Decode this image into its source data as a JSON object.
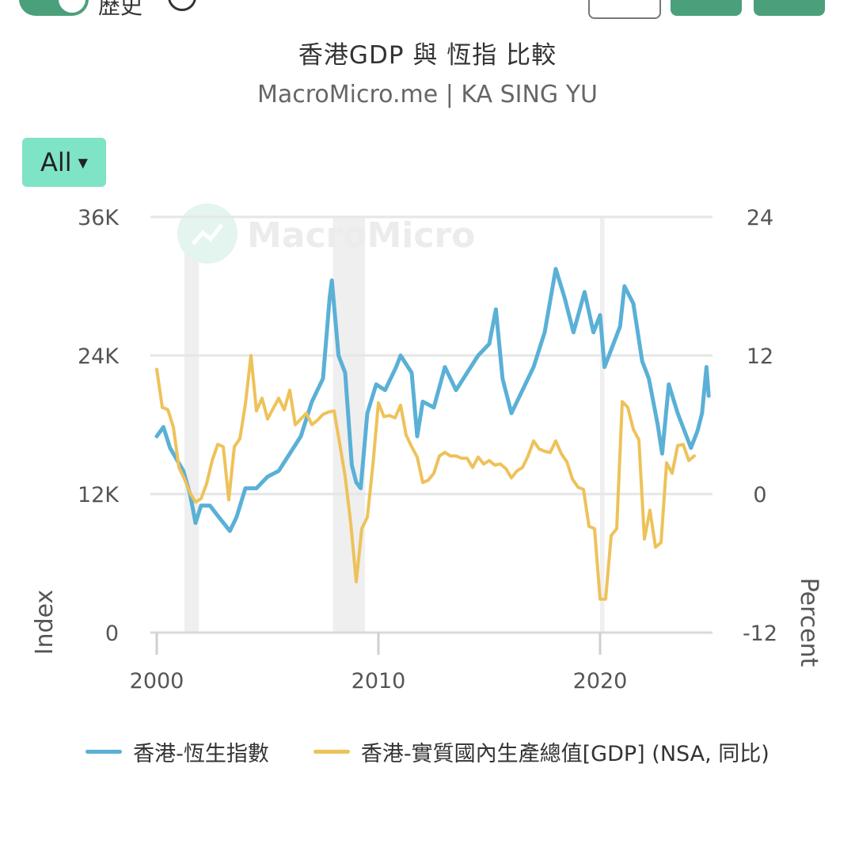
{
  "header": {
    "toggle_label": "歷史",
    "title": "香港GDP 與 恆指 比較",
    "subtitle": "MacroMicro.me | KA SING YU",
    "range_button": "All"
  },
  "watermark": "MacroMicro",
  "colors": {
    "hsi": "#5ab0d6",
    "gdp": "#eec25a",
    "accent": "#4aa07a",
    "range_button": "#7fe3c6",
    "recession_band": "#efefef",
    "grid": "#e6e6e6"
  },
  "chart_data": {
    "type": "line",
    "title": "香港GDP 與 恆指 比較",
    "subtitle": "MacroMicro.me | KA SING YU",
    "x_ticks": [
      "2000",
      "2010",
      "2020"
    ],
    "y_left": {
      "label": "Index",
      "ticks": [
        "0",
        "12K",
        "24K",
        "36K"
      ],
      "range": [
        0,
        36000
      ]
    },
    "y_right": {
      "label": "Percent",
      "ticks": [
        "-12",
        "0",
        "12",
        "24"
      ],
      "range": [
        -12,
        24
      ]
    },
    "xlim": [
      2000,
      2025
    ],
    "grid": true,
    "legend_position": "bottom",
    "recession_bands": [
      [
        2001.25,
        2001.9
      ],
      [
        2007.95,
        2009.4
      ],
      [
        2020.0,
        2020.2
      ]
    ],
    "series": [
      {
        "name": "香港-恆生指數",
        "axis": "left",
        "color": "#5ab0d6",
        "points": [
          [
            2000.0,
            17000
          ],
          [
            2000.3,
            17800
          ],
          [
            2000.6,
            16000
          ],
          [
            2000.9,
            15000
          ],
          [
            2001.2,
            14000
          ],
          [
            2001.5,
            12000
          ],
          [
            2001.75,
            9500
          ],
          [
            2002.0,
            11000
          ],
          [
            2002.4,
            11000
          ],
          [
            2002.8,
            10000
          ],
          [
            2003.3,
            8800
          ],
          [
            2003.6,
            10000
          ],
          [
            2004.0,
            12500
          ],
          [
            2004.5,
            12500
          ],
          [
            2005.0,
            13500
          ],
          [
            2005.5,
            14000
          ],
          [
            2006.0,
            15500
          ],
          [
            2006.5,
            17000
          ],
          [
            2007.0,
            20000
          ],
          [
            2007.5,
            22000
          ],
          [
            2007.8,
            29000
          ],
          [
            2007.9,
            30500
          ],
          [
            2008.2,
            24000
          ],
          [
            2008.5,
            22500
          ],
          [
            2008.8,
            14500
          ],
          [
            2009.0,
            13000
          ],
          [
            2009.2,
            12500
          ],
          [
            2009.5,
            19000
          ],
          [
            2009.9,
            21500
          ],
          [
            2010.3,
            21000
          ],
          [
            2010.8,
            23000
          ],
          [
            2011.0,
            24000
          ],
          [
            2011.5,
            22500
          ],
          [
            2011.75,
            17000
          ],
          [
            2012.0,
            20000
          ],
          [
            2012.5,
            19500
          ],
          [
            2013.0,
            23000
          ],
          [
            2013.5,
            21000
          ],
          [
            2014.0,
            22500
          ],
          [
            2014.5,
            24000
          ],
          [
            2015.0,
            25000
          ],
          [
            2015.3,
            28000
          ],
          [
            2015.6,
            22000
          ],
          [
            2016.0,
            19000
          ],
          [
            2016.5,
            21000
          ],
          [
            2017.0,
            23000
          ],
          [
            2017.5,
            26000
          ],
          [
            2018.0,
            31500
          ],
          [
            2018.4,
            29000
          ],
          [
            2018.8,
            26000
          ],
          [
            2019.3,
            29500
          ],
          [
            2019.7,
            26000
          ],
          [
            2020.0,
            27500
          ],
          [
            2020.2,
            23000
          ],
          [
            2020.5,
            24500
          ],
          [
            2020.9,
            26500
          ],
          [
            2021.1,
            30000
          ],
          [
            2021.5,
            28500
          ],
          [
            2021.9,
            23500
          ],
          [
            2022.2,
            22000
          ],
          [
            2022.6,
            18000
          ],
          [
            2022.8,
            15500
          ],
          [
            2023.1,
            21500
          ],
          [
            2023.5,
            19000
          ],
          [
            2023.9,
            17000
          ],
          [
            2024.1,
            16000
          ],
          [
            2024.4,
            17500
          ],
          [
            2024.6,
            19000
          ],
          [
            2024.8,
            23000
          ],
          [
            2024.9,
            20500
          ]
        ]
      },
      {
        "name": "香港-實質國內生產總值[GDP] (NSA, 同比)",
        "axis": "right",
        "color": "#eec25a",
        "points": [
          [
            2000.0,
            10.8
          ],
          [
            2000.25,
            7.5
          ],
          [
            2000.5,
            7.3
          ],
          [
            2000.75,
            5.8
          ],
          [
            2001.0,
            2.3
          ],
          [
            2001.25,
            1.3
          ],
          [
            2001.5,
            0.1
          ],
          [
            2001.75,
            -0.7
          ],
          [
            2002.0,
            -0.4
          ],
          [
            2002.25,
            0.9
          ],
          [
            2002.5,
            2.9
          ],
          [
            2002.75,
            4.3
          ],
          [
            2003.0,
            4.1
          ],
          [
            2003.25,
            -0.5
          ],
          [
            2003.5,
            4.1
          ],
          [
            2003.75,
            4.8
          ],
          [
            2004.0,
            7.8
          ],
          [
            2004.25,
            12.0
          ],
          [
            2004.5,
            7.2
          ],
          [
            2004.75,
            8.3
          ],
          [
            2005.0,
            6.5
          ],
          [
            2005.25,
            7.4
          ],
          [
            2005.5,
            8.3
          ],
          [
            2005.75,
            7.3
          ],
          [
            2006.0,
            9.0
          ],
          [
            2006.25,
            6.0
          ],
          [
            2006.5,
            6.5
          ],
          [
            2006.75,
            7.0
          ],
          [
            2007.0,
            6.0
          ],
          [
            2007.25,
            6.4
          ],
          [
            2007.5,
            6.9
          ],
          [
            2007.75,
            7.1
          ],
          [
            2008.0,
            7.2
          ],
          [
            2008.25,
            4.4
          ],
          [
            2008.5,
            1.5
          ],
          [
            2008.75,
            -2.5
          ],
          [
            2009.0,
            -7.6
          ],
          [
            2009.25,
            -3.0
          ],
          [
            2009.5,
            -2.0
          ],
          [
            2009.75,
            2.5
          ],
          [
            2010.0,
            7.9
          ],
          [
            2010.25,
            6.7
          ],
          [
            2010.5,
            6.8
          ],
          [
            2010.75,
            6.6
          ],
          [
            2011.0,
            7.7
          ],
          [
            2011.25,
            5.1
          ],
          [
            2011.5,
            4.1
          ],
          [
            2011.75,
            3.2
          ],
          [
            2012.0,
            1.0
          ],
          [
            2012.25,
            1.2
          ],
          [
            2012.5,
            1.8
          ],
          [
            2012.75,
            3.3
          ],
          [
            2013.0,
            3.6
          ],
          [
            2013.25,
            3.3
          ],
          [
            2013.5,
            3.3
          ],
          [
            2013.75,
            3.1
          ],
          [
            2014.0,
            3.1
          ],
          [
            2014.25,
            2.3
          ],
          [
            2014.5,
            3.2
          ],
          [
            2014.75,
            2.6
          ],
          [
            2015.0,
            2.9
          ],
          [
            2015.25,
            2.5
          ],
          [
            2015.5,
            2.6
          ],
          [
            2015.75,
            2.2
          ],
          [
            2016.0,
            1.4
          ],
          [
            2016.25,
            2.0
          ],
          [
            2016.5,
            2.3
          ],
          [
            2016.75,
            3.3
          ],
          [
            2017.0,
            4.6
          ],
          [
            2017.25,
            3.9
          ],
          [
            2017.5,
            3.7
          ],
          [
            2017.75,
            3.6
          ],
          [
            2018.0,
            4.6
          ],
          [
            2018.25,
            3.5
          ],
          [
            2018.5,
            2.8
          ],
          [
            2018.75,
            1.3
          ],
          [
            2019.0,
            0.6
          ],
          [
            2019.25,
            0.4
          ],
          [
            2019.5,
            -2.8
          ],
          [
            2019.75,
            -3.0
          ],
          [
            2020.0,
            -9.1
          ],
          [
            2020.25,
            -9.1
          ],
          [
            2020.5,
            -3.6
          ],
          [
            2020.75,
            -3.0
          ],
          [
            2021.0,
            8.0
          ],
          [
            2021.25,
            7.5
          ],
          [
            2021.5,
            5.6
          ],
          [
            2021.75,
            4.7
          ],
          [
            2022.0,
            -3.9
          ],
          [
            2022.25,
            -1.4
          ],
          [
            2022.5,
            -4.6
          ],
          [
            2022.75,
            -4.2
          ],
          [
            2023.0,
            2.7
          ],
          [
            2023.25,
            1.8
          ],
          [
            2023.5,
            4.2
          ],
          [
            2023.75,
            4.3
          ],
          [
            2024.0,
            2.9
          ],
          [
            2024.25,
            3.3
          ]
        ]
      }
    ]
  }
}
